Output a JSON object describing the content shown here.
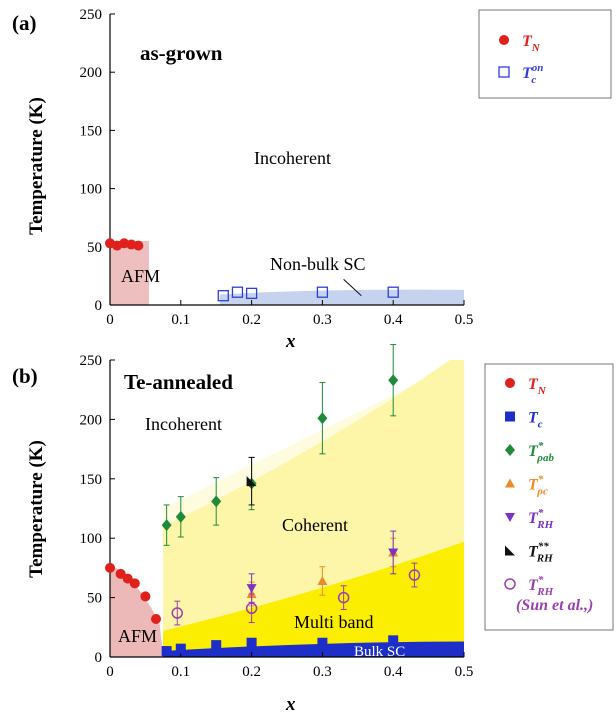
{
  "chart_data": [
    {
      "panel_label": "(a)",
      "type": "scatter",
      "annotation_title": "as-grown",
      "xlabel": "x",
      "ylabel": "Temperature (K)",
      "xlim": [
        0,
        0.5
      ],
      "ylim": [
        0,
        250
      ],
      "xticks": [
        "0",
        "0.1",
        "0.2",
        "0.3",
        "0.4",
        "0.5"
      ],
      "yticks": [
        "0",
        "50",
        "100",
        "150",
        "200",
        "250"
      ],
      "regions": {
        "afm": "AFM",
        "incoherent": "Incoherent",
        "nonbulk": "Non-bulk SC"
      },
      "legend": {
        "position": "right",
        "entries": [
          {
            "label": "T",
            "sup": "",
            "sub": "N",
            "marker": "circle-filled",
            "color": "#e0201b"
          },
          {
            "label": "T",
            "sup": "on",
            "sub": "c",
            "marker": "square-open",
            "color": "#2f3fd6"
          }
        ]
      },
      "series": [
        {
          "key": "TN",
          "marker": "circle-filled",
          "color": "#e0201b",
          "x": [
            0.0,
            0.01,
            0.02,
            0.03,
            0.04
          ],
          "y": [
            53,
            51,
            53,
            52,
            51
          ]
        },
        {
          "key": "Tc_on",
          "marker": "square-open",
          "color": "#2f3fd6",
          "x": [
            0.16,
            0.18,
            0.2,
            0.3,
            0.4
          ],
          "y": [
            8,
            11,
            10,
            11,
            11
          ]
        }
      ]
    },
    {
      "panel_label": "(b)",
      "type": "scatter",
      "annotation_title": "Te-annealed",
      "xlabel": "x",
      "ylabel": "Temperature (K)",
      "xlim": [
        0,
        0.5
      ],
      "ylim": [
        0,
        250
      ],
      "xticks": [
        "0",
        "0.1",
        "0.2",
        "0.3",
        "0.4",
        "0.5"
      ],
      "yticks": [
        "0",
        "50",
        "100",
        "150",
        "200",
        "250"
      ],
      "regions": {
        "afm": "AFM",
        "incoherent": "Incoherent",
        "coherent": "Coherent",
        "multiband": "Multi band",
        "bulksc": "Bulk SC"
      },
      "legend": {
        "position": "right",
        "entries": [
          {
            "label": "T",
            "sup": "",
            "sub": "N",
            "marker": "circle-filled",
            "color": "#e0201b"
          },
          {
            "label": "T",
            "sup": "",
            "sub": "c",
            "marker": "square-filled",
            "color": "#1d2fc8"
          },
          {
            "label": "T",
            "sup": "*",
            "sub": "ρab",
            "marker": "diamond-filled",
            "color": "#1f8a3a"
          },
          {
            "label": "T",
            "sup": "*",
            "sub": "ρc",
            "marker": "triangle-up",
            "color": "#ef8a2a"
          },
          {
            "label": "T",
            "sup": "*",
            "sub": "RH",
            "marker": "triangle-down",
            "color": "#7a33c2"
          },
          {
            "label": "T",
            "sup": "**",
            "sub": "RH",
            "marker": "triangle-corner",
            "color": "#111111"
          },
          {
            "label": "T",
            "sup": "*",
            "sub": "RH",
            "marker": "circle-open",
            "color": "#9b3fb0",
            "note": "(Sun et al.,)"
          }
        ]
      },
      "series": [
        {
          "key": "TN",
          "marker": "circle-filled",
          "color": "#e0201b",
          "x": [
            0.0,
            0.015,
            0.025,
            0.035,
            0.05,
            0.065
          ],
          "y": [
            75,
            70,
            66,
            62,
            51,
            32
          ]
        },
        {
          "key": "Tc",
          "marker": "square-filled",
          "color": "#1d2fc8",
          "x": [
            0.08,
            0.1,
            0.15,
            0.2,
            0.3,
            0.4
          ],
          "y": [
            5,
            7,
            10,
            12,
            12,
            14
          ]
        },
        {
          "key": "T*rho_ab",
          "marker": "diamond-filled",
          "color": "#1f8a3a",
          "x": [
            0.08,
            0.1,
            0.15,
            0.2,
            0.3,
            0.4
          ],
          "y": [
            111,
            118,
            131,
            146,
            201,
            233
          ],
          "err": [
            17,
            17,
            20,
            22,
            30,
            30
          ]
        },
        {
          "key": "T*rho_c",
          "marker": "triangle-up",
          "color": "#ef8a2a",
          "x": [
            0.2,
            0.3,
            0.4
          ],
          "y": [
            53,
            64,
            88
          ],
          "err": [
            10,
            12,
            12
          ]
        },
        {
          "key": "T*RH",
          "marker": "triangle-down",
          "color": "#7a33c2",
          "x": [
            0.2,
            0.4
          ],
          "y": [
            58,
            88
          ],
          "err": [
            12,
            18
          ]
        },
        {
          "key": "T**RH",
          "marker": "triangle-corner",
          "color": "#111111",
          "x": [
            0.2
          ],
          "y": [
            148
          ],
          "err": [
            20
          ]
        },
        {
          "key": "T*RH_Sun",
          "marker": "circle-open",
          "color": "#9b3fb0",
          "x": [
            0.095,
            0.2,
            0.33,
            0.43
          ],
          "y": [
            37,
            41,
            50,
            69
          ],
          "err": [
            10,
            12,
            10,
            10
          ]
        }
      ]
    }
  ]
}
